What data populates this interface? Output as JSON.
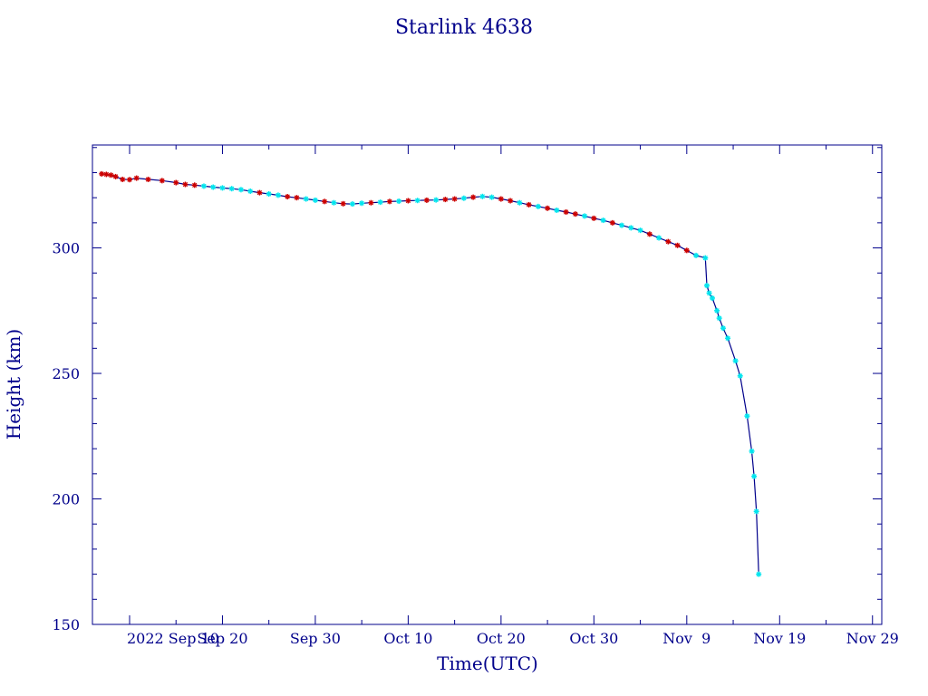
{
  "chart_data": {
    "type": "line",
    "title": "Starlink 4638",
    "xlabel": "Time(UTC)",
    "ylabel": "Height (km)",
    "x_ticks": [
      {
        "date": "2022-09-10",
        "label": "2022 Sep 10"
      },
      {
        "date": "2022-09-20",
        "label": "Sep 20"
      },
      {
        "date": "2022-09-30",
        "label": "Sep 30"
      },
      {
        "date": "2022-10-10",
        "label": "Oct 10"
      },
      {
        "date": "2022-10-20",
        "label": "Oct 20"
      },
      {
        "date": "2022-10-30",
        "label": "Oct 30"
      },
      {
        "date": "2022-11-09",
        "label": "Nov  9"
      },
      {
        "date": "2022-11-19",
        "label": "Nov 19"
      },
      {
        "date": "2022-11-29",
        "label": "Nov 29"
      }
    ],
    "y_ticks": [
      150,
      200,
      250,
      300
    ],
    "xlim": [
      "2022-09-06T00:00",
      "2022-11-30T00:00"
    ],
    "ylim": [
      150,
      341
    ],
    "grid": false,
    "colors": {
      "axes": "#00008b",
      "line": "#00008b",
      "marker_cyan": "#00e5ee",
      "marker_red": "#cc0000"
    },
    "series": [
      {
        "values": [
          {
            "x": "2022-09-07T00:00",
            "y": 329.5,
            "m": "red"
          },
          {
            "x": "2022-09-07T12:00",
            "y": 329.3,
            "m": "red"
          },
          {
            "x": "2022-09-08T00:00",
            "y": 329.0,
            "m": "red"
          },
          {
            "x": "2022-09-08T12:00",
            "y": 328.4,
            "m": "red"
          },
          {
            "x": "2022-09-09T06:00",
            "y": 327.3,
            "m": "red"
          },
          {
            "x": "2022-09-10T00:00",
            "y": 327.2,
            "m": "red"
          },
          {
            "x": "2022-09-10T18:00",
            "y": 327.8,
            "m": "red"
          },
          {
            "x": "2022-09-12T00:00",
            "y": 327.3,
            "m": "red"
          },
          {
            "x": "2022-09-13T12:00",
            "y": 326.8,
            "m": "red"
          },
          {
            "x": "2022-09-15T00:00",
            "y": 326.0,
            "m": "red"
          },
          {
            "x": "2022-09-16T00:00",
            "y": 325.3,
            "m": "red"
          },
          {
            "x": "2022-09-17T00:00",
            "y": 325.0,
            "m": "red"
          },
          {
            "x": "2022-09-18T00:00",
            "y": 324.6,
            "m": "cyan"
          },
          {
            "x": "2022-09-19T00:00",
            "y": 324.2,
            "m": "cyan"
          },
          {
            "x": "2022-09-20T00:00",
            "y": 323.9,
            "m": "cyan"
          },
          {
            "x": "2022-09-21T00:00",
            "y": 323.6,
            "m": "cyan"
          },
          {
            "x": "2022-09-22T00:00",
            "y": 323.2,
            "m": "cyan"
          },
          {
            "x": "2022-09-23T00:00",
            "y": 322.6,
            "m": "cyan"
          },
          {
            "x": "2022-09-24T00:00",
            "y": 322.0,
            "m": "red"
          },
          {
            "x": "2022-09-25T00:00",
            "y": 321.5,
            "m": "cyan"
          },
          {
            "x": "2022-09-26T00:00",
            "y": 321.0,
            "m": "cyan"
          },
          {
            "x": "2022-09-27T00:00",
            "y": 320.4,
            "m": "red"
          },
          {
            "x": "2022-09-28T00:00",
            "y": 320.0,
            "m": "red"
          },
          {
            "x": "2022-09-29T00:00",
            "y": 319.5,
            "m": "cyan"
          },
          {
            "x": "2022-09-30T00:00",
            "y": 319.0,
            "m": "cyan"
          },
          {
            "x": "2022-10-01T00:00",
            "y": 318.5,
            "m": "red"
          },
          {
            "x": "2022-10-02T00:00",
            "y": 318.0,
            "m": "cyan"
          },
          {
            "x": "2022-10-03T00:00",
            "y": 317.6,
            "m": "red"
          },
          {
            "x": "2022-10-04T00:00",
            "y": 317.5,
            "m": "cyan"
          },
          {
            "x": "2022-10-05T00:00",
            "y": 317.8,
            "m": "cyan"
          },
          {
            "x": "2022-10-06T00:00",
            "y": 318.0,
            "m": "red"
          },
          {
            "x": "2022-10-07T00:00",
            "y": 318.2,
            "m": "cyan"
          },
          {
            "x": "2022-10-08T00:00",
            "y": 318.5,
            "m": "red"
          },
          {
            "x": "2022-10-09T00:00",
            "y": 318.6,
            "m": "cyan"
          },
          {
            "x": "2022-10-10T00:00",
            "y": 318.8,
            "m": "red"
          },
          {
            "x": "2022-10-11T00:00",
            "y": 318.9,
            "m": "cyan"
          },
          {
            "x": "2022-10-12T00:00",
            "y": 319.0,
            "m": "red"
          },
          {
            "x": "2022-10-13T00:00",
            "y": 319.1,
            "m": "cyan"
          },
          {
            "x": "2022-10-14T00:00",
            "y": 319.3,
            "m": "red"
          },
          {
            "x": "2022-10-15T00:00",
            "y": 319.5,
            "m": "red"
          },
          {
            "x": "2022-10-16T00:00",
            "y": 319.8,
            "m": "cyan"
          },
          {
            "x": "2022-10-17T00:00",
            "y": 320.2,
            "m": "red"
          },
          {
            "x": "2022-10-18T00:00",
            "y": 320.5,
            "m": "cyan"
          },
          {
            "x": "2022-10-19T00:00",
            "y": 320.2,
            "m": "cyan"
          },
          {
            "x": "2022-10-20T00:00",
            "y": 319.5,
            "m": "red"
          },
          {
            "x": "2022-10-21T00:00",
            "y": 318.8,
            "m": "red"
          },
          {
            "x": "2022-10-22T00:00",
            "y": 318.0,
            "m": "cyan"
          },
          {
            "x": "2022-10-23T00:00",
            "y": 317.2,
            "m": "red"
          },
          {
            "x": "2022-10-24T00:00",
            "y": 316.5,
            "m": "cyan"
          },
          {
            "x": "2022-10-25T00:00",
            "y": 315.8,
            "m": "red"
          },
          {
            "x": "2022-10-26T00:00",
            "y": 315.0,
            "m": "cyan"
          },
          {
            "x": "2022-10-27T00:00",
            "y": 314.3,
            "m": "red"
          },
          {
            "x": "2022-10-28T00:00",
            "y": 313.5,
            "m": "red"
          },
          {
            "x": "2022-10-29T00:00",
            "y": 312.7,
            "m": "cyan"
          },
          {
            "x": "2022-10-30T00:00",
            "y": 311.8,
            "m": "red"
          },
          {
            "x": "2022-10-31T00:00",
            "y": 311.0,
            "m": "cyan"
          },
          {
            "x": "2022-11-01T00:00",
            "y": 310.0,
            "m": "red"
          },
          {
            "x": "2022-11-02T00:00",
            "y": 309.0,
            "m": "cyan"
          },
          {
            "x": "2022-11-03T00:00",
            "y": 308.0,
            "m": "cyan"
          },
          {
            "x": "2022-11-04T00:00",
            "y": 307.0,
            "m": "cyan"
          },
          {
            "x": "2022-11-05T00:00",
            "y": 305.5,
            "m": "red"
          },
          {
            "x": "2022-11-06T00:00",
            "y": 304.0,
            "m": "cyan"
          },
          {
            "x": "2022-11-07T00:00",
            "y": 302.5,
            "m": "red"
          },
          {
            "x": "2022-11-08T00:00",
            "y": 301.0,
            "m": "red"
          },
          {
            "x": "2022-11-09T00:00",
            "y": 299.0,
            "m": "red"
          },
          {
            "x": "2022-11-10T00:00",
            "y": 297.0,
            "m": "cyan"
          },
          {
            "x": "2022-11-11T00:00",
            "y": 296.0,
            "m": "cyan"
          },
          {
            "x": "2022-11-11T04:00",
            "y": 285.0,
            "m": "cyan"
          },
          {
            "x": "2022-11-11T10:00",
            "y": 282.0,
            "m": "cyan"
          },
          {
            "x": "2022-11-11T18:00",
            "y": 280.0,
            "m": "cyan"
          },
          {
            "x": "2022-11-12T06:00",
            "y": 275.0,
            "m": "cyan"
          },
          {
            "x": "2022-11-12T12:00",
            "y": 272.0,
            "m": "cyan"
          },
          {
            "x": "2022-11-12T22:00",
            "y": 268.0,
            "m": "cyan"
          },
          {
            "x": "2022-11-13T10:00",
            "y": 264.0,
            "m": "cyan"
          },
          {
            "x": "2022-11-14T06:00",
            "y": 255.0,
            "m": "cyan"
          },
          {
            "x": "2022-11-14T18:00",
            "y": 249.0,
            "m": "cyan"
          },
          {
            "x": "2022-11-15T12:00",
            "y": 233.0,
            "m": "cyan"
          },
          {
            "x": "2022-11-16T00:00",
            "y": 219.0,
            "m": "cyan"
          },
          {
            "x": "2022-11-16T06:00",
            "y": 209.0,
            "m": "cyan"
          },
          {
            "x": "2022-11-16T12:00",
            "y": 195.0,
            "m": "cyan"
          },
          {
            "x": "2022-11-16T18:00",
            "y": 170.0,
            "m": "cyan"
          }
        ]
      }
    ]
  }
}
